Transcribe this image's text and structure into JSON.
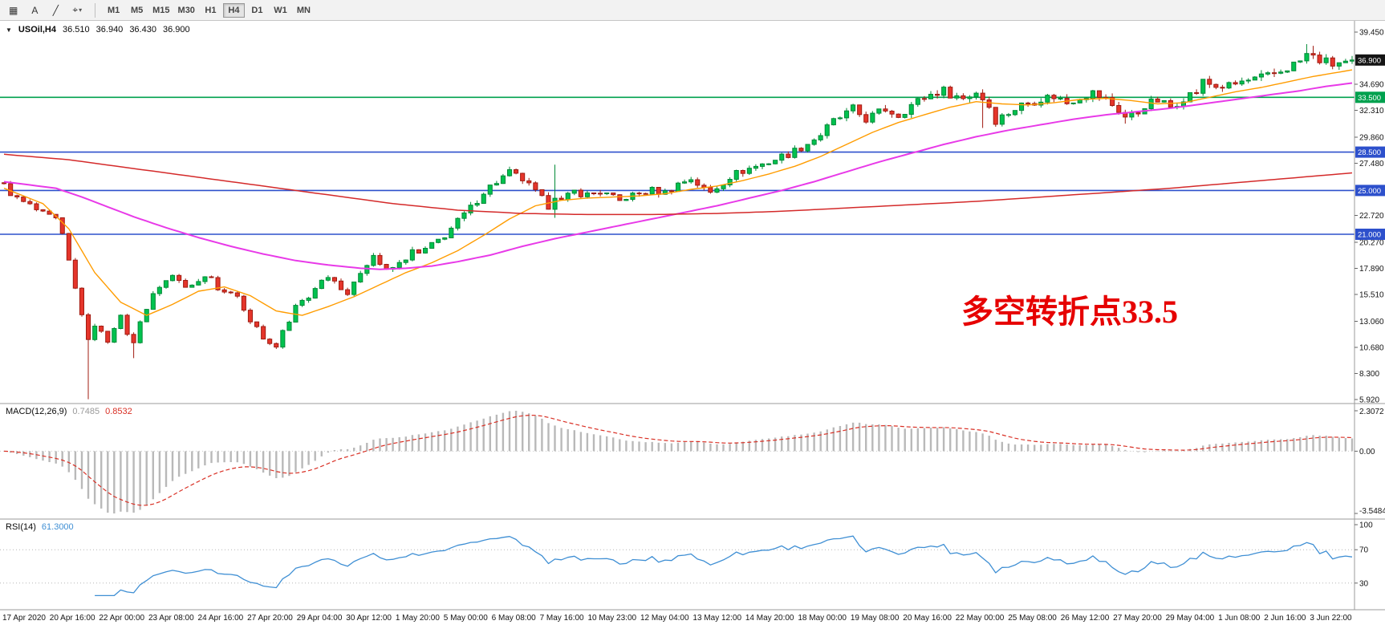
{
  "toolbar": {
    "tools": [
      {
        "name": "chart-layout-icon",
        "glyph": "▦"
      },
      {
        "name": "text-annotation-icon",
        "glyph": "A"
      },
      {
        "name": "trendline-tool-icon",
        "glyph": "╱"
      },
      {
        "name": "shapes-tool-icon",
        "glyph": "⌖",
        "caret": "▾"
      }
    ],
    "timeframes": [
      "M1",
      "M5",
      "M15",
      "M30",
      "H1",
      "H4",
      "D1",
      "W1",
      "MN"
    ],
    "active_timeframe": "H4"
  },
  "header": {
    "collapse_glyph": "▼",
    "symbol_period": "USOil,H4",
    "open": "36.510",
    "high": "36.940",
    "low": "36.430",
    "close": "36.900"
  },
  "macd_label": {
    "name": "MACD(12,26,9)",
    "main": "0.7485",
    "signal": "0.8532"
  },
  "rsi_label": {
    "name": "RSI(14)",
    "value": "61.3000"
  },
  "chart_data": {
    "type": "candlestick",
    "symbol": "USOil",
    "period": "H4",
    "ohlc_readout": {
      "open": 36.51,
      "high": 36.94,
      "low": 36.43,
      "close": 36.9
    },
    "bar_count": 209,
    "price_axis": {
      "min": 5.92,
      "max": 39.45,
      "tick_labels": [
        "39.450",
        "34.690",
        "32.310",
        "29.860",
        "27.480",
        "22.720",
        "20.270",
        "17.890",
        "15.510",
        "13.060",
        "10.680",
        "8.300",
        "5.920"
      ],
      "tick_values": [
        39.45,
        34.69,
        32.31,
        29.86,
        27.48,
        22.72,
        20.27,
        17.89,
        15.51,
        13.06,
        10.68,
        8.3,
        5.92
      ]
    },
    "horizontal_lines": [
      {
        "label": "33.500",
        "value": 33.5,
        "color": "#00a14e"
      },
      {
        "label": "28.500",
        "value": 28.5,
        "color": "#2d50cc"
      },
      {
        "label": "25.000",
        "value": 25.0,
        "color": "#2d50cc"
      },
      {
        "label": "21.000",
        "value": 21.0,
        "color": "#2d50cc"
      }
    ],
    "last_price_tag": {
      "label": "36.900",
      "value": 36.9,
      "color": "#141414"
    },
    "candle_colors": {
      "up": "#00c24f",
      "up_border": "#008a36",
      "down": "#e5352b",
      "down_border": "#a01c12"
    },
    "close_anchors": [
      [
        0,
        25.4
      ],
      [
        2,
        24.2
      ],
      [
        4,
        23.6
      ],
      [
        6,
        22.8
      ],
      [
        8,
        22.3
      ],
      [
        9,
        20.8
      ],
      [
        10,
        18.5
      ],
      [
        11,
        16.0
      ],
      [
        12,
        13.8
      ],
      [
        13,
        11.2
      ],
      [
        14,
        12.8
      ],
      [
        15,
        12.0
      ],
      [
        16,
        11.3
      ],
      [
        17,
        12.6
      ],
      [
        18,
        13.4
      ],
      [
        19,
        12.0
      ],
      [
        20,
        11.0
      ],
      [
        21,
        13.2
      ],
      [
        22,
        14.2
      ],
      [
        23,
        15.4
      ],
      [
        24,
        16.3
      ],
      [
        26,
        17.2
      ],
      [
        28,
        16.4
      ],
      [
        30,
        16.8
      ],
      [
        32,
        17.3
      ],
      [
        33,
        16.0
      ],
      [
        34,
        15.6
      ],
      [
        35,
        15.9
      ],
      [
        36,
        15.1
      ],
      [
        37,
        14.3
      ],
      [
        38,
        13.1
      ],
      [
        39,
        12.4
      ],
      [
        40,
        11.6
      ],
      [
        41,
        11.0
      ],
      [
        42,
        10.8
      ],
      [
        43,
        12.2
      ],
      [
        44,
        13.0
      ],
      [
        45,
        14.4
      ],
      [
        46,
        14.9
      ],
      [
        47,
        15.2
      ],
      [
        48,
        16.2
      ],
      [
        50,
        17.3
      ],
      [
        52,
        16.2
      ],
      [
        53,
        15.6
      ],
      [
        54,
        16.4
      ],
      [
        55,
        17.6
      ],
      [
        56,
        18.4
      ],
      [
        57,
        19.1
      ],
      [
        58,
        18.3
      ],
      [
        59,
        17.6
      ],
      [
        61,
        18.3
      ],
      [
        63,
        19.4
      ],
      [
        64,
        19.2
      ],
      [
        66,
        20.0
      ],
      [
        68,
        20.9
      ],
      [
        70,
        22.2
      ],
      [
        72,
        23.4
      ],
      [
        74,
        24.9
      ],
      [
        76,
        25.8
      ],
      [
        78,
        26.6
      ],
      [
        80,
        26.0
      ],
      [
        82,
        24.8
      ],
      [
        84,
        23.6
      ],
      [
        85,
        24.6
      ],
      [
        86,
        24.0
      ],
      [
        88,
        24.9
      ],
      [
        90,
        24.6
      ],
      [
        92,
        24.9
      ],
      [
        94,
        24.3
      ],
      [
        95,
        24.0
      ],
      [
        96,
        24.4
      ],
      [
        98,
        24.7
      ],
      [
        100,
        25.0
      ],
      [
        102,
        24.8
      ],
      [
        104,
        25.6
      ],
      [
        106,
        26.1
      ],
      [
        108,
        25.1
      ],
      [
        109,
        24.8
      ],
      [
        111,
        25.8
      ],
      [
        112,
        26.3
      ],
      [
        114,
        26.8
      ],
      [
        116,
        27.2
      ],
      [
        118,
        27.6
      ],
      [
        120,
        28.1
      ],
      [
        122,
        28.6
      ],
      [
        124,
        29.3
      ],
      [
        126,
        30.1
      ],
      [
        128,
        31.3
      ],
      [
        130,
        32.0
      ],
      [
        131,
        32.4
      ],
      [
        133,
        31.5
      ],
      [
        135,
        32.1
      ],
      [
        136,
        32.4
      ],
      [
        138,
        31.9
      ],
      [
        140,
        32.8
      ],
      [
        142,
        33.5
      ],
      [
        144,
        34.0
      ],
      [
        145,
        34.1
      ],
      [
        147,
        33.6
      ],
      [
        148,
        33.4
      ],
      [
        150,
        34.0
      ],
      [
        151,
        33.4
      ],
      [
        152,
        32.7
      ],
      [
        153,
        31.4
      ],
      [
        155,
        32.1
      ],
      [
        157,
        32.8
      ],
      [
        158,
        33.0
      ],
      [
        160,
        33.4
      ],
      [
        162,
        33.6
      ],
      [
        164,
        33.0
      ],
      [
        166,
        33.6
      ],
      [
        168,
        33.9
      ],
      [
        170,
        33.3
      ],
      [
        172,
        32.3
      ],
      [
        173,
        31.7
      ],
      [
        175,
        32.1
      ],
      [
        176,
        32.8
      ],
      [
        178,
        33.2
      ],
      [
        180,
        32.6
      ],
      [
        182,
        33.5
      ],
      [
        184,
        34.0
      ],
      [
        185,
        34.9
      ],
      [
        187,
        34.5
      ],
      [
        189,
        34.5
      ],
      [
        191,
        34.9
      ],
      [
        193,
        35.1
      ],
      [
        195,
        35.4
      ],
      [
        197,
        35.9
      ],
      [
        199,
        36.5
      ],
      [
        200,
        36.8
      ],
      [
        201,
        37.4
      ],
      [
        203,
        36.9
      ],
      [
        205,
        36.5
      ],
      [
        207,
        36.8
      ],
      [
        208,
        36.9
      ]
    ],
    "special_bars": {
      "13": {
        "low": 5.95
      },
      "20": {
        "low": 9.7
      },
      "85": {
        "high": 27.35,
        "low": 22.5
      },
      "151": {
        "low": 30.7
      },
      "173": {
        "low": 31.1
      },
      "201": {
        "high": 38.35
      },
      "202": {
        "high": 38.2
      }
    },
    "moving_averages": [
      {
        "name": "ma-fast-orange",
        "color": "#ff9c00",
        "width": 1.4,
        "anchors": [
          [
            0,
            25.2
          ],
          [
            6,
            23.8
          ],
          [
            10,
            21.5
          ],
          [
            14,
            17.5
          ],
          [
            18,
            14.8
          ],
          [
            22,
            13.6
          ],
          [
            26,
            14.6
          ],
          [
            30,
            15.8
          ],
          [
            34,
            16.2
          ],
          [
            38,
            15.4
          ],
          [
            42,
            14.0
          ],
          [
            46,
            13.6
          ],
          [
            50,
            14.4
          ],
          [
            54,
            15.3
          ],
          [
            58,
            16.4
          ],
          [
            62,
            17.5
          ],
          [
            66,
            18.4
          ],
          [
            70,
            19.5
          ],
          [
            74,
            20.9
          ],
          [
            78,
            22.4
          ],
          [
            82,
            23.6
          ],
          [
            86,
            24.1
          ],
          [
            90,
            24.3
          ],
          [
            94,
            24.4
          ],
          [
            98,
            24.5
          ],
          [
            102,
            24.7
          ],
          [
            106,
            25.1
          ],
          [
            110,
            25.4
          ],
          [
            114,
            25.9
          ],
          [
            118,
            26.5
          ],
          [
            122,
            27.2
          ],
          [
            126,
            28.1
          ],
          [
            130,
            29.2
          ],
          [
            134,
            30.3
          ],
          [
            138,
            31.2
          ],
          [
            142,
            31.9
          ],
          [
            146,
            32.6
          ],
          [
            150,
            33.1
          ],
          [
            154,
            32.9
          ],
          [
            158,
            32.8
          ],
          [
            162,
            33.0
          ],
          [
            166,
            33.3
          ],
          [
            170,
            33.4
          ],
          [
            174,
            33.2
          ],
          [
            178,
            32.9
          ],
          [
            182,
            33.0
          ],
          [
            186,
            33.5
          ],
          [
            190,
            34.0
          ],
          [
            194,
            34.4
          ],
          [
            198,
            34.9
          ],
          [
            202,
            35.4
          ],
          [
            206,
            35.8
          ],
          [
            208,
            36.0
          ]
        ]
      },
      {
        "name": "ma-mid-magenta",
        "color": "#e83ae8",
        "width": 2.0,
        "anchors": [
          [
            0,
            25.8
          ],
          [
            8,
            25.2
          ],
          [
            12,
            24.4
          ],
          [
            16,
            23.5
          ],
          [
            20,
            22.6
          ],
          [
            25,
            21.6
          ],
          [
            30,
            20.7
          ],
          [
            35,
            19.9
          ],
          [
            40,
            19.2
          ],
          [
            45,
            18.6
          ],
          [
            50,
            18.2
          ],
          [
            55,
            17.9
          ],
          [
            58,
            17.8
          ],
          [
            62,
            17.9
          ],
          [
            66,
            18.1
          ],
          [
            70,
            18.5
          ],
          [
            75,
            19.1
          ],
          [
            80,
            19.9
          ],
          [
            85,
            20.6
          ],
          [
            90,
            21.2
          ],
          [
            95,
            21.8
          ],
          [
            100,
            22.4
          ],
          [
            105,
            23.0
          ],
          [
            110,
            23.6
          ],
          [
            115,
            24.3
          ],
          [
            120,
            25.0
          ],
          [
            125,
            25.8
          ],
          [
            130,
            26.7
          ],
          [
            135,
            27.6
          ],
          [
            140,
            28.4
          ],
          [
            145,
            29.2
          ],
          [
            150,
            29.9
          ],
          [
            155,
            30.5
          ],
          [
            160,
            31.0
          ],
          [
            165,
            31.5
          ],
          [
            170,
            31.9
          ],
          [
            175,
            32.2
          ],
          [
            180,
            32.5
          ],
          [
            185,
            32.9
          ],
          [
            190,
            33.3
          ],
          [
            195,
            33.7
          ],
          [
            200,
            34.1
          ],
          [
            204,
            34.5
          ],
          [
            208,
            34.8
          ]
        ]
      },
      {
        "name": "ma-slow-red",
        "color": "#d42a2a",
        "width": 1.5,
        "anchors": [
          [
            0,
            28.3
          ],
          [
            10,
            27.8
          ],
          [
            20,
            27.0
          ],
          [
            30,
            26.2
          ],
          [
            40,
            25.4
          ],
          [
            50,
            24.6
          ],
          [
            60,
            23.8
          ],
          [
            70,
            23.2
          ],
          [
            80,
            22.9
          ],
          [
            90,
            22.8
          ],
          [
            100,
            22.8
          ],
          [
            110,
            22.9
          ],
          [
            120,
            23.1
          ],
          [
            130,
            23.4
          ],
          [
            140,
            23.7
          ],
          [
            150,
            24.0
          ],
          [
            160,
            24.4
          ],
          [
            170,
            24.8
          ],
          [
            180,
            25.2
          ],
          [
            190,
            25.7
          ],
          [
            200,
            26.2
          ],
          [
            208,
            26.6
          ]
        ]
      }
    ],
    "time_axis": {
      "labels": [
        "17 Apr 2020",
        "20 Apr 16:00",
        "22 Apr 00:00",
        "23 Apr 08:00",
        "24 Apr 16:00",
        "27 Apr 20:00",
        "29 Apr 04:00",
        "30 Apr 12:00",
        "1 May 20:00",
        "5 May 00:00",
        "6 May 08:00",
        "7 May 16:00",
        "10 May 23:00",
        "12 May 04:00",
        "13 May 12:00",
        "14 May 20:00",
        "18 May 00:00",
        "19 May 08:00",
        "20 May 16:00",
        "22 May 00:00",
        "25 May 08:00",
        "26 May 12:00",
        "27 May 20:00",
        "29 May 04:00",
        "1 Jun 08:00",
        "2 Jun 16:00",
        "3 Jun 22:00"
      ]
    },
    "macd": {
      "params": "12,26,9",
      "main_value": 0.7485,
      "signal_value": 0.8532,
      "axis": {
        "max": 2.3072,
        "min": -3.5484,
        "tick_labels": [
          "2.3072",
          "0.00",
          "-3.5484"
        ]
      },
      "hist_color": "#b9b9b9",
      "signal_color": "#d93025"
    },
    "rsi": {
      "period": 14,
      "value": 61.3,
      "color": "#3f8fd4",
      "axis": {
        "max": 100,
        "min": 0,
        "tick_labels": [
          "100",
          "70",
          "30"
        ],
        "levels": [
          70,
          30
        ]
      }
    },
    "annotation": {
      "text": "多空转折点33.5",
      "color": "#e60000"
    }
  }
}
